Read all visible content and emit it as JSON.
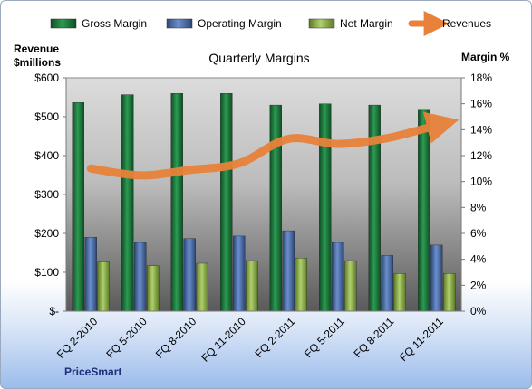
{
  "chart_data": {
    "type": "bar",
    "title": "Quarterly Margins",
    "categories": [
      "FQ 2-2010",
      "FQ 5-2010",
      "FQ 8-2010",
      "FQ 11-2010",
      "FQ 2-2011",
      "FQ 5-2011",
      "FQ 8-2011",
      "FQ 11-2011"
    ],
    "left_axis": {
      "label_line1": "Revenue",
      "label_line2": "$millions",
      "ylim": [
        0,
        600
      ],
      "tick_values": [
        0,
        100,
        200,
        300,
        400,
        500,
        600
      ],
      "tick_labels": [
        "$-",
        "$100",
        "$200",
        "$300",
        "$400",
        "$500",
        "$600"
      ]
    },
    "right_axis": {
      "label": "Margin %",
      "ylim": [
        0,
        18
      ],
      "tick_values": [
        0,
        2,
        4,
        6,
        8,
        10,
        12,
        14,
        16,
        18
      ],
      "tick_labels": [
        "0%",
        "2%",
        "4%",
        "6%",
        "8%",
        "10%",
        "12%",
        "14%",
        "16%",
        "18%"
      ]
    },
    "series": [
      {
        "name": "Gross Margin",
        "type": "bar",
        "axis": "right",
        "color": "#1e7b3c",
        "values": [
          16.1,
          16.7,
          16.8,
          16.8,
          15.9,
          16.0,
          15.9,
          15.5
        ]
      },
      {
        "name": "Operating Margin",
        "type": "bar",
        "axis": "right",
        "color": "#4a6fad",
        "values": [
          5.7,
          5.3,
          5.6,
          5.8,
          6.2,
          5.3,
          4.3,
          5.1
        ]
      },
      {
        "name": "Net Margin",
        "type": "bar",
        "axis": "right",
        "color": "#8fb34c",
        "values": [
          3.8,
          3.5,
          3.7,
          3.9,
          4.1,
          3.9,
          2.9,
          2.9
        ]
      },
      {
        "name": "Revenues",
        "type": "line",
        "axis": "left",
        "color": "#e8823a",
        "values": [
          367,
          349,
          363,
          380,
          443,
          430,
          445,
          478
        ]
      }
    ],
    "legend_position": "top",
    "grid": false,
    "source_label": "PriceSmart"
  }
}
